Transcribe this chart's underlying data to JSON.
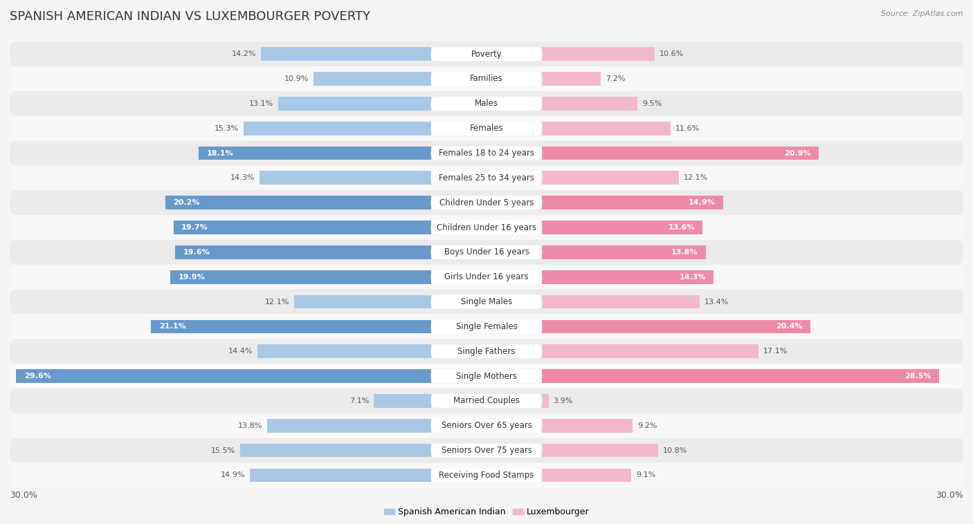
{
  "title": "SPANISH AMERICAN INDIAN VS LUXEMBOURGER POVERTY",
  "source": "Source: ZipAtlas.com",
  "categories": [
    "Poverty",
    "Families",
    "Males",
    "Females",
    "Females 18 to 24 years",
    "Females 25 to 34 years",
    "Children Under 5 years",
    "Children Under 16 years",
    "Boys Under 16 years",
    "Girls Under 16 years",
    "Single Males",
    "Single Females",
    "Single Fathers",
    "Single Mothers",
    "Married Couples",
    "Seniors Over 65 years",
    "Seniors Over 75 years",
    "Receiving Food Stamps"
  ],
  "left_values": [
    14.2,
    10.9,
    13.1,
    15.3,
    18.1,
    14.3,
    20.2,
    19.7,
    19.6,
    19.9,
    12.1,
    21.1,
    14.4,
    29.6,
    7.1,
    13.8,
    15.5,
    14.9
  ],
  "right_values": [
    10.6,
    7.2,
    9.5,
    11.6,
    20.9,
    12.1,
    14.9,
    13.6,
    13.8,
    14.3,
    13.4,
    20.4,
    17.1,
    28.5,
    3.9,
    9.2,
    10.8,
    9.1
  ],
  "left_color_normal": "#a8c8e8",
  "right_color_normal": "#f4b8cc",
  "left_color_highlight": "#6699cc",
  "right_color_highlight": "#ee8aa8",
  "highlight_rows": [
    4,
    6,
    7,
    8,
    9,
    11,
    13
  ],
  "x_max": 30.0,
  "legend_left": "Spanish American Indian",
  "legend_right": "Luxembourger",
  "background_color": "#f5f5f5",
  "row_bg_even": "#ebebeb",
  "row_bg_odd": "#f8f8f8",
  "title_fontsize": 13,
  "label_fontsize": 8.5,
  "value_fontsize": 8,
  "axis_fontsize": 9
}
